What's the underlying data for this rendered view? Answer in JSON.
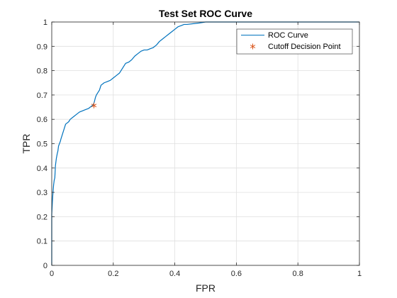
{
  "chart_data": {
    "type": "line",
    "title": "Test Set ROC Curve",
    "xlabel": "FPR",
    "ylabel": "TPR",
    "xlim": [
      0,
      1
    ],
    "ylim": [
      0,
      1
    ],
    "xticks": [
      0,
      0.2,
      0.4,
      0.6,
      0.8,
      1
    ],
    "xtick_labels": [
      "0",
      "0.2",
      "0.4",
      "0.6",
      "0.8",
      "1"
    ],
    "yticks": [
      0,
      0.1,
      0.2,
      0.3,
      0.4,
      0.5,
      0.6,
      0.7,
      0.8,
      0.9,
      1
    ],
    "ytick_labels": [
      "0",
      "0.1",
      "0.2",
      "0.3",
      "0.4",
      "0.5",
      "0.6",
      "0.7",
      "0.8",
      "0.9",
      "1"
    ],
    "grid": true,
    "legend_position": "top-right",
    "series": [
      {
        "name": "ROC Curve",
        "color": "#0072BD",
        "style": "line",
        "x": [
          0,
          0,
          0.002,
          0.004,
          0.006,
          0.008,
          0.01,
          0.012,
          0.015,
          0.018,
          0.02,
          0.022,
          0.025,
          0.028,
          0.03,
          0.035,
          0.04,
          0.045,
          0.05,
          0.055,
          0.06,
          0.07,
          0.08,
          0.09,
          0.1,
          0.11,
          0.12,
          0.13,
          0.135,
          0.138,
          0.14,
          0.142,
          0.145,
          0.15,
          0.155,
          0.16,
          0.17,
          0.18,
          0.19,
          0.2,
          0.21,
          0.22,
          0.23,
          0.24,
          0.25,
          0.26,
          0.27,
          0.28,
          0.29,
          0.3,
          0.31,
          0.32,
          0.33,
          0.34,
          0.35,
          0.36,
          0.37,
          0.38,
          0.39,
          0.4,
          0.41,
          0.42,
          0.43,
          0.44,
          0.46,
          0.48,
          0.5,
          0.52,
          0.55,
          0.6,
          0.7,
          0.8,
          0.9,
          1
        ],
        "y": [
          0,
          0.21,
          0.26,
          0.3,
          0.33,
          0.35,
          0.36,
          0.41,
          0.44,
          0.46,
          0.47,
          0.49,
          0.5,
          0.51,
          0.52,
          0.54,
          0.56,
          0.58,
          0.585,
          0.59,
          0.6,
          0.61,
          0.62,
          0.63,
          0.635,
          0.64,
          0.645,
          0.655,
          0.66,
          0.67,
          0.68,
          0.69,
          0.7,
          0.71,
          0.72,
          0.74,
          0.75,
          0.755,
          0.76,
          0.77,
          0.78,
          0.79,
          0.81,
          0.83,
          0.835,
          0.845,
          0.86,
          0.87,
          0.88,
          0.885,
          0.885,
          0.89,
          0.895,
          0.905,
          0.92,
          0.93,
          0.94,
          0.95,
          0.96,
          0.97,
          0.98,
          0.985,
          0.99,
          0.99,
          0.993,
          0.996,
          1,
          1,
          1,
          1,
          1,
          1,
          1,
          1
        ]
      },
      {
        "name": "Cutoff Decision Point",
        "color": "#D95319",
        "style": "marker-asterisk",
        "x": [
          0.137
        ],
        "y": [
          0.657
        ]
      }
    ]
  }
}
